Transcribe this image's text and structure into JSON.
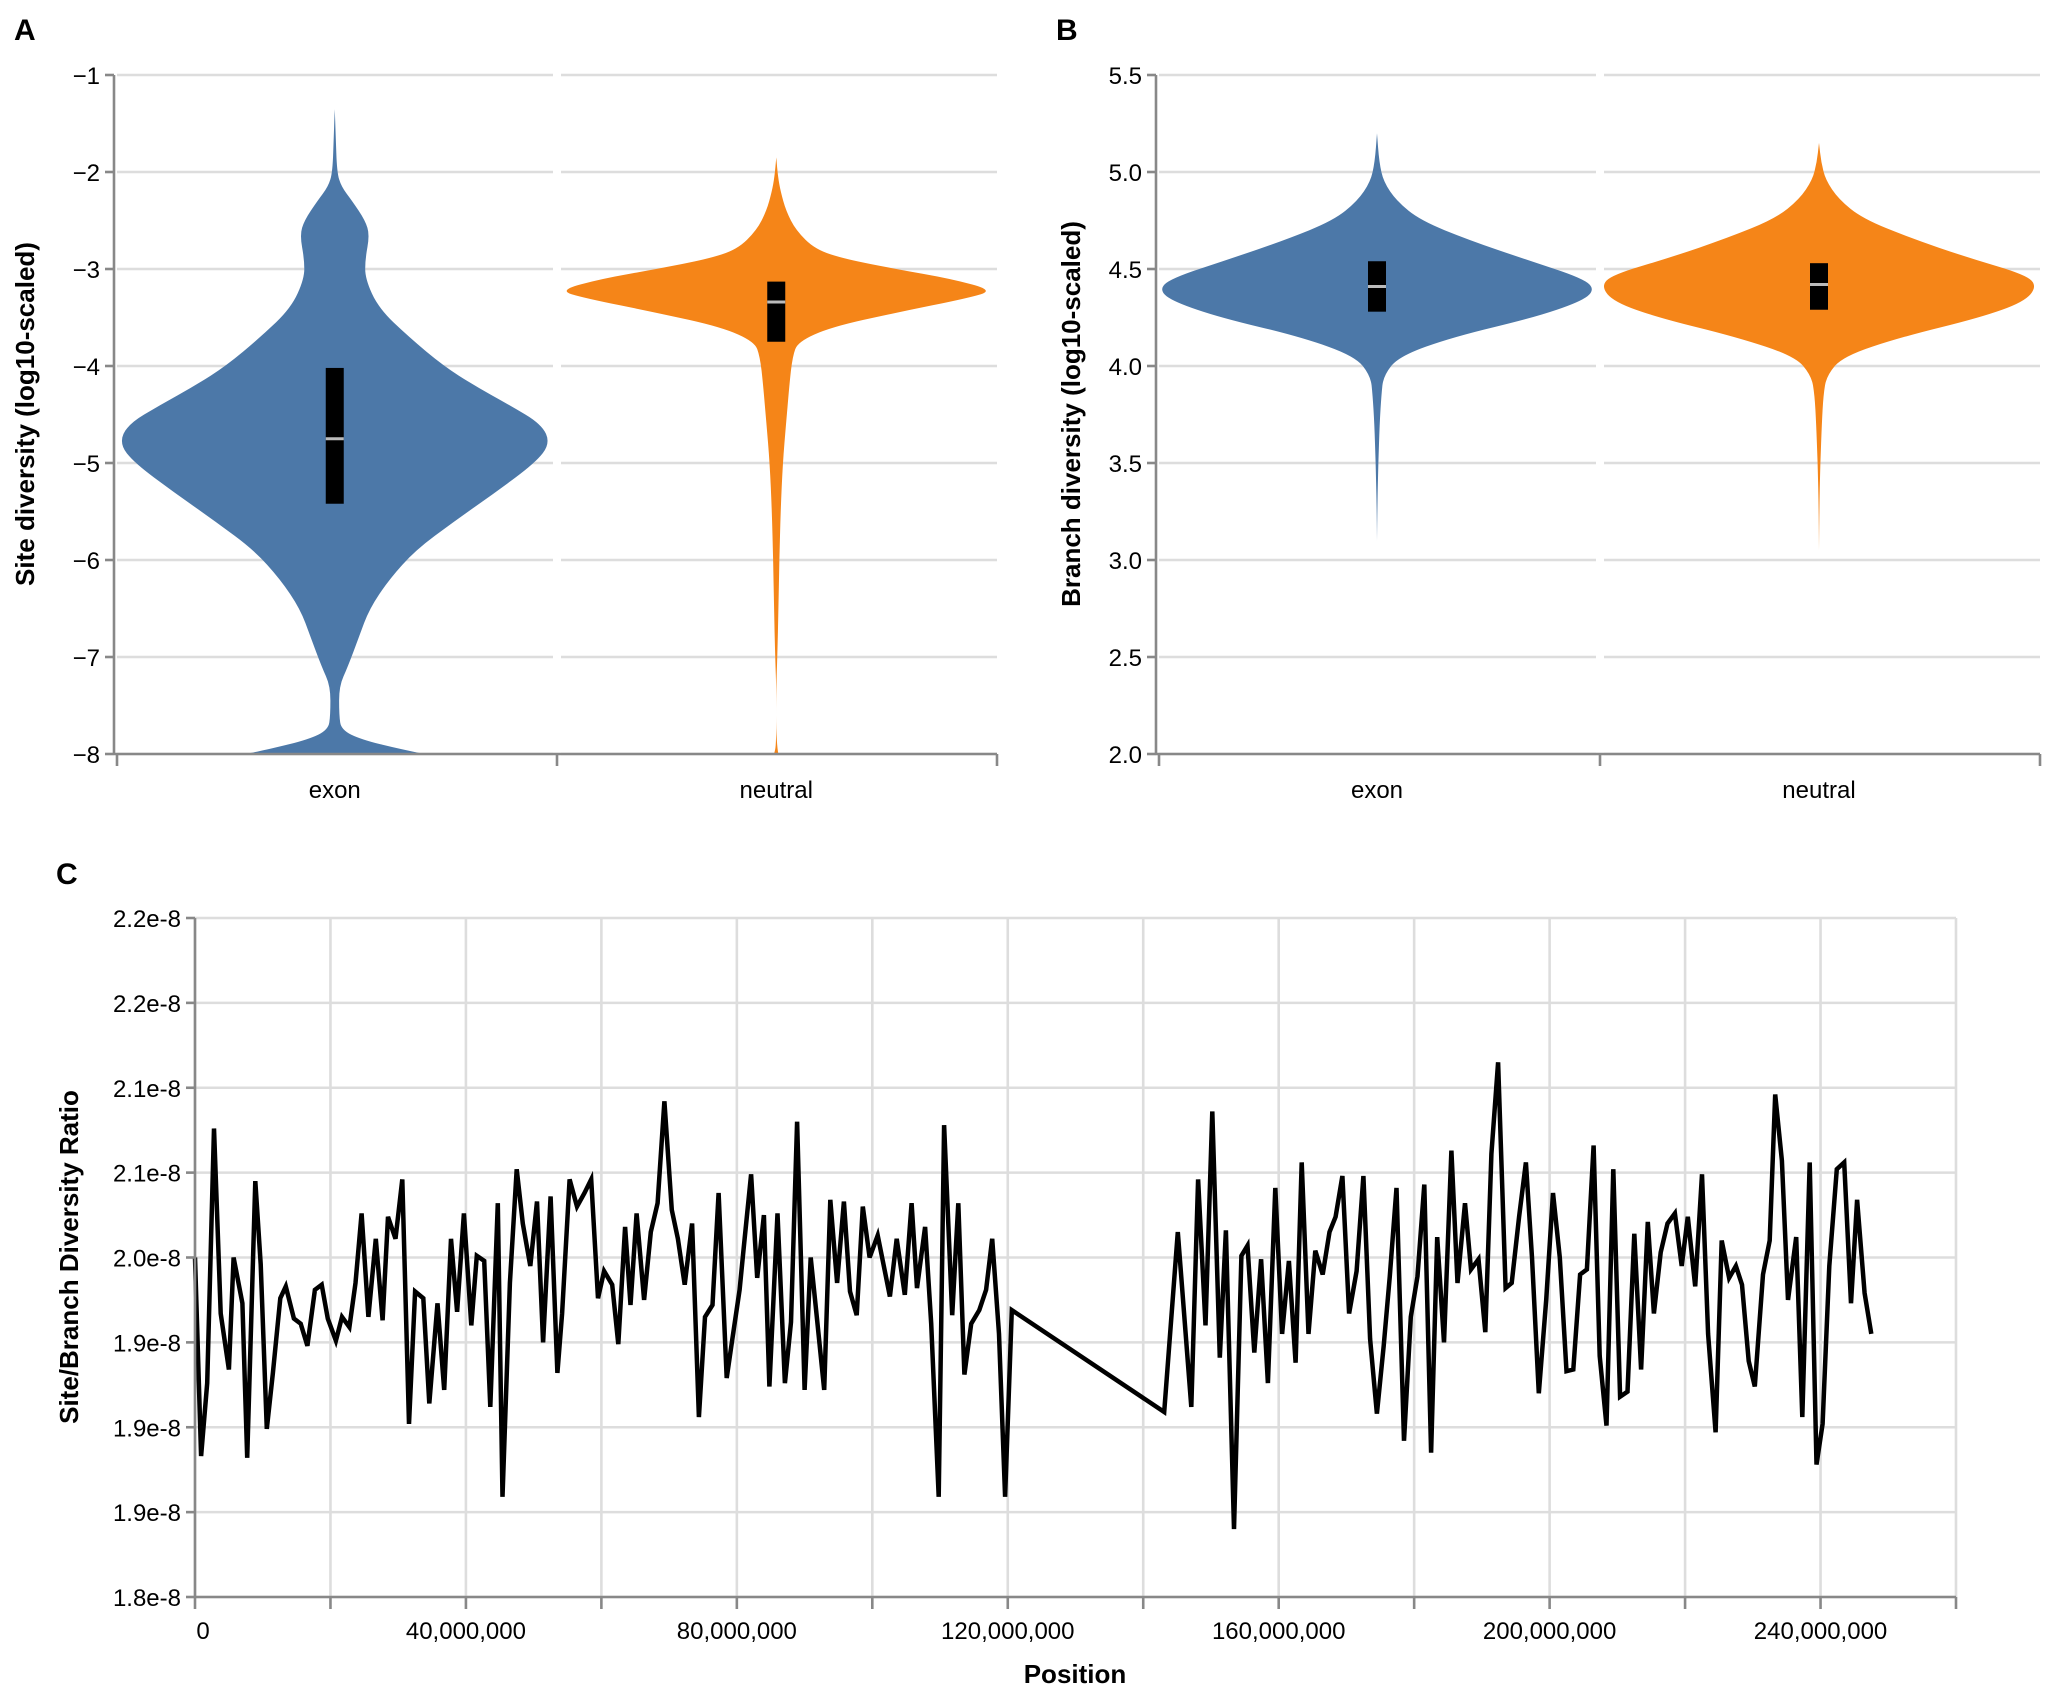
{
  "figure": {
    "panels": [
      "A",
      "B",
      "C"
    ]
  },
  "chart_data": [
    {
      "panel": "A",
      "type": "violin",
      "title": "",
      "xlabel": "",
      "ylabel": "Site diversity (log10-scaled)",
      "ylim": [
        -8,
        -1
      ],
      "yticks": [
        -1,
        -2,
        -3,
        -4,
        -5,
        -6,
        -7,
        -8
      ],
      "ytick_labels": [
        "−1",
        "−2",
        "−3",
        "−4",
        "−5",
        "−6",
        "−7",
        "−8"
      ],
      "categories": [
        "exon",
        "neutral"
      ],
      "grid": true,
      "series": [
        {
          "name": "exon",
          "color": "#4c78a8",
          "box": {
            "q1": -5.42,
            "median": -4.75,
            "q3": -4.02
          },
          "density": [
            [
              -8.0,
              0.41
            ],
            [
              -7.95,
              0.3
            ],
            [
              -7.85,
              0.12
            ],
            [
              -7.75,
              0.03
            ],
            [
              -7.6,
              0.02
            ],
            [
              -7.3,
              0.02
            ],
            [
              -7.1,
              0.06
            ],
            [
              -6.8,
              0.11
            ],
            [
              -6.5,
              0.16
            ],
            [
              -6.2,
              0.25
            ],
            [
              -5.9,
              0.37
            ],
            [
              -5.6,
              0.55
            ],
            [
              -5.3,
              0.74
            ],
            [
              -5.0,
              0.92
            ],
            [
              -4.8,
              0.99
            ],
            [
              -4.6,
              0.95
            ],
            [
              -4.4,
              0.8
            ],
            [
              -4.2,
              0.64
            ],
            [
              -4.0,
              0.5
            ],
            [
              -3.7,
              0.34
            ],
            [
              -3.4,
              0.2
            ],
            [
              -3.1,
              0.14
            ],
            [
              -2.9,
              0.14
            ],
            [
              -2.65,
              0.16
            ],
            [
              -2.5,
              0.14
            ],
            [
              -2.3,
              0.08
            ],
            [
              -2.15,
              0.03
            ],
            [
              -2.0,
              0.01
            ],
            [
              -1.6,
              0.004
            ],
            [
              -1.35,
              0.0
            ]
          ]
        },
        {
          "name": "neutral",
          "color": "#f58518",
          "box": {
            "q1": -3.75,
            "median": -3.34,
            "q3": -3.13
          },
          "density": [
            [
              -8.0,
              0.01
            ],
            [
              -7.9,
              0.0
            ],
            [
              -7.3,
              0.0
            ],
            [
              -7.0,
              0.005
            ],
            [
              -6.5,
              0.01
            ],
            [
              -6.0,
              0.014
            ],
            [
              -5.5,
              0.02
            ],
            [
              -5.0,
              0.03
            ],
            [
              -4.6,
              0.045
            ],
            [
              -4.2,
              0.06
            ],
            [
              -3.9,
              0.075
            ],
            [
              -3.75,
              0.1
            ],
            [
              -3.6,
              0.25
            ],
            [
              -3.45,
              0.55
            ],
            [
              -3.3,
              0.88
            ],
            [
              -3.22,
              1.0
            ],
            [
              -3.1,
              0.8
            ],
            [
              -3.0,
              0.55
            ],
            [
              -2.9,
              0.32
            ],
            [
              -2.8,
              0.18
            ],
            [
              -2.6,
              0.09
            ],
            [
              -2.4,
              0.045
            ],
            [
              -2.2,
              0.02
            ],
            [
              -2.05,
              0.008
            ],
            [
              -1.85,
              0.0
            ]
          ]
        }
      ]
    },
    {
      "panel": "B",
      "type": "violin",
      "title": "",
      "xlabel": "",
      "ylabel": "Branch diversity (log10-scaled)",
      "ylim": [
        2.0,
        5.5
      ],
      "yticks": [
        5.5,
        5.0,
        4.5,
        4.0,
        3.5,
        3.0,
        2.5,
        2.0
      ],
      "ytick_labels": [
        "5.5",
        "5.0",
        "4.5",
        "4.0",
        "3.5",
        "3.0",
        "2.5",
        "2.0"
      ],
      "categories": [
        "exon",
        "neutral"
      ],
      "grid": true,
      "series": [
        {
          "name": "exon",
          "color": "#4c78a8",
          "box": {
            "q1": 4.28,
            "median": 4.41,
            "q3": 4.54
          },
          "density": [
            [
              3.1,
              0.0
            ],
            [
              3.3,
              0.002
            ],
            [
              3.5,
              0.006
            ],
            [
              3.7,
              0.012
            ],
            [
              3.85,
              0.02
            ],
            [
              3.95,
              0.03
            ],
            [
              4.05,
              0.1
            ],
            [
              4.15,
              0.35
            ],
            [
              4.25,
              0.72
            ],
            [
              4.33,
              0.93
            ],
            [
              4.39,
              1.0
            ],
            [
              4.45,
              0.95
            ],
            [
              4.55,
              0.68
            ],
            [
              4.65,
              0.42
            ],
            [
              4.75,
              0.2
            ],
            [
              4.85,
              0.09
            ],
            [
              4.95,
              0.03
            ],
            [
              5.05,
              0.01
            ],
            [
              5.2,
              0.0
            ]
          ]
        },
        {
          "name": "neutral",
          "color": "#f58518",
          "box": {
            "q1": 4.29,
            "median": 4.42,
            "q3": 4.53
          },
          "density": [
            [
              3.05,
              0.0
            ],
            [
              3.3,
              0.002
            ],
            [
              3.5,
              0.006
            ],
            [
              3.7,
              0.013
            ],
            [
              3.85,
              0.02
            ],
            [
              3.95,
              0.035
            ],
            [
              4.05,
              0.11
            ],
            [
              4.15,
              0.38
            ],
            [
              4.25,
              0.74
            ],
            [
              4.33,
              0.94
            ],
            [
              4.41,
              1.0
            ],
            [
              4.47,
              0.95
            ],
            [
              4.56,
              0.68
            ],
            [
              4.66,
              0.42
            ],
            [
              4.76,
              0.2
            ],
            [
              4.86,
              0.09
            ],
            [
              4.96,
              0.03
            ],
            [
              5.05,
              0.01
            ],
            [
              5.15,
              0.0
            ]
          ]
        }
      ]
    },
    {
      "panel": "C",
      "type": "line",
      "title": "",
      "xlabel": "Position",
      "ylabel": "Site/Branch Diversity Ratio",
      "xlim": [
        0,
        260000000
      ],
      "ylim": [
        1.8e-08,
        2.2e-08
      ],
      "xticks": [
        0,
        40000000,
        80000000,
        120000000,
        160000000,
        200000000,
        240000000
      ],
      "xtick_labels": [
        "0",
        "40,000,000",
        "80,000,000",
        "120,000,000",
        "160,000,000",
        "200,000,000",
        "240,000,000"
      ],
      "x_minor_gridlines": [
        20000000,
        60000000,
        100000000,
        140000000,
        180000000,
        220000000,
        260000000
      ],
      "yticks": [
        2.2e-08,
        2.15e-08,
        2.1e-08,
        2.05e-08,
        2e-08,
        1.95e-08,
        1.9e-08,
        1.85e-08,
        1.8e-08
      ],
      "ytick_labels": [
        "2.2e-8",
        "2.2e-8",
        "2.1e-8",
        "2.1e-8",
        "2.0e-8",
        "1.9e-8",
        "1.9e-8",
        "1.9e-8",
        "1.8e-8"
      ],
      "grid": true,
      "series": [
        {
          "name": "ratio",
          "color": "#000000",
          "x_unit_mb": true,
          "x": [
            0,
            0.9,
            1.8,
            2.8,
            3.8,
            5.0,
            5.7,
            7.0,
            7.7,
            8.9,
            9.7,
            10.6,
            11.5,
            12.6,
            13.4,
            14.6,
            15.6,
            16.6,
            17.7,
            18.7,
            19.6,
            20.8,
            21.7,
            22.8,
            23.7,
            24.6,
            25.6,
            26.7,
            27.7,
            28.5,
            29.6,
            30.6,
            31.6,
            32.5,
            33.7,
            34.6,
            35.8,
            36.8,
            37.8,
            38.7,
            39.7,
            40.8,
            41.6,
            42.7,
            43.6,
            44.7,
            45.4,
            46.5,
            47.5,
            48.4,
            49.5,
            50.5,
            51.4,
            52.5,
            53.5,
            54.2,
            55.3,
            56.4,
            57.5,
            58.5,
            59.5,
            60.4,
            61.6,
            62.5,
            63.5,
            64.3,
            65.2,
            66.3,
            67.3,
            68.3,
            69.3,
            70.4,
            71.3,
            72.3,
            73.4,
            74.4,
            75.3,
            76.4,
            77.3,
            78.5,
            79.3,
            80.4,
            81.0,
            82.1,
            83.0,
            84.0,
            84.8,
            86.0,
            87.1,
            88.0,
            88.9,
            90.0,
            90.9,
            91.8,
            92.9,
            93.8,
            94.8,
            95.8,
            96.7,
            97.7,
            98.6,
            99.6,
            100.8,
            101.8,
            102.6,
            103.6,
            104.8,
            105.8,
            106.6,
            107.8,
            108.7,
            109.8,
            110.6,
            111.8,
            112.7,
            113.6,
            114.6,
            115.8,
            116.8,
            117.7,
            118.7,
            119.6,
            120.6,
            143.1,
            145.1,
            147.1,
            148.1,
            149.2,
            150.2,
            151.3,
            152.2,
            153.4,
            154.5,
            155.4,
            156.4,
            157.4,
            158.4,
            159.5,
            160.5,
            161.5,
            162.5,
            163.4,
            164.4,
            165.4,
            166.5,
            167.5,
            168.4,
            169.4,
            170.4,
            171.5,
            172.5,
            173.5,
            174.5,
            175.5,
            176.4,
            177.4,
            178.5,
            179.5,
            180.5,
            181.5,
            182.5,
            183.4,
            184.4,
            185.5,
            186.4,
            187.5,
            188.4,
            189.5,
            190.5,
            191.4,
            192.4,
            193.5,
            194.4,
            195.5,
            196.5,
            197.4,
            198.4,
            199.5,
            200.5,
            201.5,
            202.5,
            203.5,
            204.5,
            205.5,
            206.5,
            207.4,
            208.4,
            209.4,
            210.4,
            211.5,
            212.5,
            213.5,
            214.5,
            215.4,
            216.4,
            217.4,
            218.5,
            219.5,
            220.4,
            221.5,
            222.5,
            223.4,
            224.5,
            225.4,
            226.5,
            227.5,
            228.4,
            229.4,
            230.3,
            231.5,
            232.5,
            233.3,
            234.3,
            235.2,
            236.4,
            237.3,
            238.4,
            239.4,
            240.3,
            241.3,
            242.4,
            243.5,
            244.5,
            245.4,
            246.5,
            247.5
          ],
          "y_e8": [
            2.0,
            1.883,
            1.926,
            2.076,
            1.967,
            1.934,
            2.0,
            1.973,
            1.882,
            2.045,
            1.996,
            1.899,
            1.932,
            1.976,
            1.983,
            1.964,
            1.961,
            1.948,
            1.981,
            1.984,
            1.964,
            1.951,
            1.965,
            1.959,
            1.985,
            2.026,
            1.965,
            2.011,
            1.963,
            2.024,
            2.011,
            2.046,
            1.902,
            1.98,
            1.976,
            1.914,
            1.973,
            1.922,
            2.011,
            1.968,
            2.026,
            1.96,
            2.001,
            1.998,
            1.912,
            2.032,
            1.859,
            1.985,
            2.052,
            2.02,
            1.995,
            2.033,
            1.95,
            2.036,
            1.932,
            1.967,
            2.046,
            2.03,
            2.038,
            2.046,
            1.976,
            1.992,
            1.984,
            1.949,
            2.018,
            1.972,
            2.026,
            1.975,
            2.015,
            2.032,
            2.092,
            2.028,
            2.011,
            1.984,
            2.02,
            1.906,
            1.965,
            1.972,
            2.038,
            1.929,
            1.951,
            1.981,
            2.005,
            2.049,
            1.988,
            2.025,
            1.924,
            2.026,
            1.926,
            1.962,
            2.08,
            1.922,
            2.0,
            1.965,
            1.922,
            2.034,
            1.985,
            2.033,
            1.98,
            1.966,
            2.03,
            2.0,
            2.013,
            1.993,
            1.977,
            2.011,
            1.978,
            2.032,
            1.982,
            2.018,
            1.961,
            1.859,
            2.078,
            1.966,
            2.032,
            1.931,
            1.961,
            1.969,
            1.981,
            2.011,
            1.955,
            1.859,
            1.969,
            1.909,
            2.015,
            1.912,
            2.046,
            1.96,
            2.086,
            1.941,
            2.016,
            1.84,
            2.001,
            2.007,
            1.944,
            1.999,
            1.926,
            2.041,
            1.955,
            1.998,
            1.938,
            2.056,
            1.955,
            2.004,
            1.99,
            2.015,
            2.024,
            2.048,
            1.967,
            1.992,
            2.048,
            1.952,
            1.908,
            1.948,
            1.989,
            2.041,
            1.892,
            1.965,
            1.989,
            2.043,
            1.885,
            2.012,
            1.95,
            2.063,
            1.985,
            2.032,
            1.993,
            1.999,
            1.956,
            2.061,
            2.115,
            1.982,
            1.985,
            2.024,
            2.056,
            2.0,
            1.92,
            1.975,
            2.038,
            2.0,
            1.933,
            1.934,
            1.99,
            1.993,
            2.066,
            1.942,
            1.901,
            2.052,
            1.918,
            1.921,
            2.014,
            1.934,
            2.021,
            1.967,
            2.003,
            2.02,
            2.026,
            1.995,
            2.024,
            1.983,
            2.049,
            1.955,
            1.897,
            2.01,
            1.988,
            1.995,
            1.984,
            1.939,
            1.924,
            1.99,
            2.01,
            2.096,
            2.057,
            1.975,
            2.012,
            1.906,
            2.056,
            1.878,
            1.902,
            1.995,
            2.052,
            2.056,
            1.973,
            2.034,
            1.979,
            1.955
          ]
        }
      ]
    }
  ]
}
